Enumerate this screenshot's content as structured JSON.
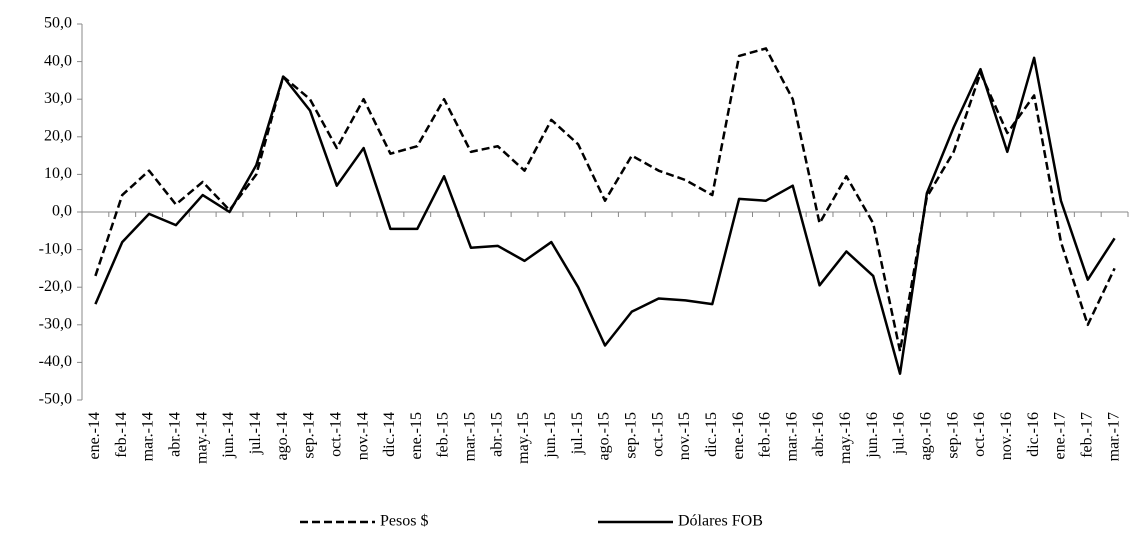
{
  "chart_data": {
    "type": "line",
    "categories": [
      "ene.-14",
      "feb.-14",
      "mar.-14",
      "abr.-14",
      "may.-14",
      "jun.-14",
      "jul.-14",
      "ago.-14",
      "sep.-14",
      "oct.-14",
      "nov.-14",
      "dic.-14",
      "ene.-15",
      "feb.-15",
      "mar.-15",
      "abr.-15",
      "may.-15",
      "jun.-15",
      "jul.-15",
      "ago.-15",
      "sep.-15",
      "oct.-15",
      "nov.-15",
      "dic.-15",
      "ene.-16",
      "feb.-16",
      "mar.-16",
      "abr.-16",
      "may.-16",
      "jun.-16",
      "jul.-16",
      "ago.-16",
      "sep.-16",
      "oct.-16",
      "nov.-16",
      "dic.-16",
      "ene.-17",
      "feb.-17",
      "mar.-17"
    ],
    "series": [
      {
        "name": "Pesos $",
        "color": "#000000",
        "style": "dashed",
        "values": [
          -17,
          4.5,
          11,
          2,
          8,
          0.5,
          10,
          36,
          30,
          17,
          30,
          15.5,
          17.5,
          30,
          16,
          17.5,
          11,
          24.5,
          18,
          3,
          15,
          11,
          8.5,
          4.5,
          41.5,
          43.5,
          30,
          -3,
          9.5,
          -3,
          -37,
          4,
          16,
          37,
          21,
          31,
          -8,
          -30,
          -15
        ]
      },
      {
        "name": "Dólares FOB",
        "color": "#000000",
        "style": "solid",
        "values": [
          -24.5,
          -8,
          -0.5,
          -3.5,
          4.5,
          0,
          12.5,
          36,
          27,
          7,
          17,
          -4.5,
          -4.5,
          9.5,
          -9.5,
          -9,
          -13,
          -8,
          -20,
          -35.5,
          -26.5,
          -23,
          -23.5,
          -24.5,
          3.5,
          3,
          7,
          -19.5,
          -10.5,
          -17,
          -43,
          5,
          22.5,
          38,
          16,
          41,
          3,
          -18,
          -7
        ]
      }
    ],
    "ylim": [
      -50,
      50
    ],
    "yticks": [
      {
        "value": -50,
        "label": "-50,0"
      },
      {
        "value": -40,
        "label": "-40,0"
      },
      {
        "value": -30,
        "label": "-30,0"
      },
      {
        "value": -20,
        "label": "-20,0"
      },
      {
        "value": -10,
        "label": "-10,0"
      },
      {
        "value": 0,
        "label": "0,0"
      },
      {
        "value": 10,
        "label": "10,0"
      },
      {
        "value": 20,
        "label": "20,0"
      },
      {
        "value": 30,
        "label": "30,0"
      },
      {
        "value": 40,
        "label": "40,0"
      },
      {
        "value": 50,
        "label": "50,0"
      }
    ],
    "legend": "bottom"
  }
}
